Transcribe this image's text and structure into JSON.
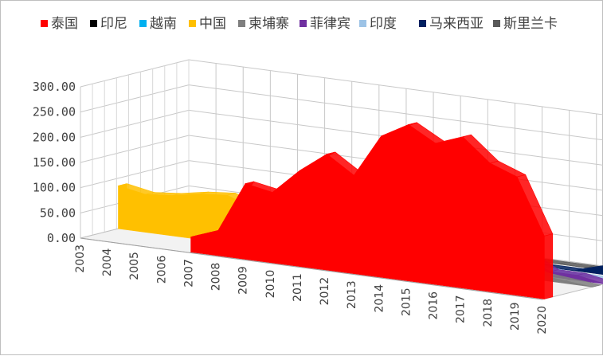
{
  "chart_data": {
    "type": "area",
    "subtype": "3d-area",
    "title": "",
    "xlabel": "",
    "ylabel": "",
    "ylim": [
      0,
      300
    ],
    "y_ticks": [
      "0.00",
      "50.00",
      "100.00",
      "150.00",
      "200.00",
      "250.00",
      "300.00"
    ],
    "legend_position": "top",
    "grid": true,
    "categories": [
      "2003",
      "2004",
      "2005",
      "2006",
      "2007",
      "2008",
      "2009",
      "2010",
      "2011",
      "2012",
      "2013",
      "2014",
      "2015",
      "2016",
      "2017",
      "2018",
      "2019",
      "2020"
    ],
    "series": [
      {
        "name": "泰国",
        "color": "#ff0000",
        "values": [
          null,
          null,
          null,
          null,
          30,
          50,
          150,
          140,
          190,
          230,
          195,
          280,
          310,
          280,
          300,
          255,
          235,
          125
        ]
      },
      {
        "name": "印尼",
        "color": "#000000",
        "values": [
          null,
          null,
          null,
          null,
          null,
          null,
          null,
          80,
          65,
          null,
          null,
          null,
          null,
          null,
          null,
          null,
          null,
          null
        ]
      },
      {
        "name": "越南",
        "color": "#00b0f0",
        "values": [
          null,
          null,
          null,
          null,
          null,
          null,
          null,
          null,
          60,
          55,
          80,
          65,
          170,
          105,
          80,
          70,
          null,
          null
        ]
      },
      {
        "name": "中国",
        "color": "#ffc000",
        "values": [
          85,
          75,
          80,
          90,
          95,
          75,
          75,
          80,
          75,
          null,
          null,
          null,
          null,
          null,
          null,
          null,
          null,
          null
        ]
      },
      {
        "name": "柬埔寨",
        "color": "#7f7f7f",
        "values": [
          null,
          null,
          null,
          null,
          5,
          10,
          15,
          20,
          30,
          45,
          80,
          45,
          35,
          45,
          50,
          10,
          5,
          0
        ]
      },
      {
        "name": "菲律宾",
        "color": "#7030a0",
        "values": [
          5,
          5,
          5,
          10,
          15,
          20,
          15,
          20,
          15,
          20,
          15,
          10,
          10,
          30,
          40,
          10,
          10,
          0
        ]
      },
      {
        "name": "印度",
        "color": "#9dc3e6",
        "values": [
          12,
          10,
          10,
          8,
          8,
          15,
          12,
          10,
          5,
          5,
          5,
          5,
          5,
          5,
          5,
          0,
          0,
          0
        ]
      },
      {
        "name": "马来西亚",
        "color": "#002060",
        "values": [
          0,
          0,
          0,
          0,
          0,
          0,
          0,
          0,
          0,
          5,
          5,
          5,
          0,
          0,
          0,
          0,
          15,
          25
        ]
      },
      {
        "name": "斯里兰卡",
        "color": "#595959",
        "values": [
          0,
          0,
          0,
          0,
          0,
          0,
          0,
          0,
          0,
          0,
          0,
          0,
          0,
          0,
          0,
          0,
          0,
          0
        ]
      }
    ]
  }
}
